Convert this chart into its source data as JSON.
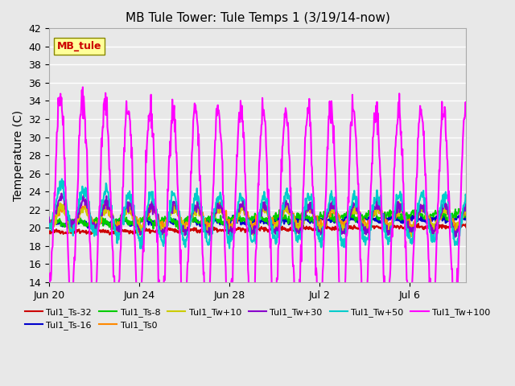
{
  "title": "MB Tule Tower: Tule Temps 1 (3/19/14-now)",
  "ylabel": "Temperature (C)",
  "xlabel": "",
  "xlim_days": [
    0,
    18.5
  ],
  "ylim": [
    14,
    42
  ],
  "yticks": [
    14,
    16,
    18,
    20,
    22,
    24,
    26,
    28,
    30,
    32,
    34,
    36,
    38,
    40,
    42
  ],
  "xtick_labels": [
    "Jun 20",
    "Jun 24",
    "Jun 28",
    "Jul 2",
    "Jul 6"
  ],
  "xtick_positions": [
    0,
    4,
    8,
    12,
    16
  ],
  "background_color": "#e8e8e8",
  "plot_bg_color": "#e8e8e8",
  "grid_color": "#ffffff",
  "series": {
    "Tul1_Ts-32": {
      "color": "#cc0000",
      "lw": 1.5
    },
    "Tul1_Ts-16": {
      "color": "#0000cc",
      "lw": 1.5
    },
    "Tul1_Ts-8": {
      "color": "#00cc00",
      "lw": 1.5
    },
    "Tul1_Ts0": {
      "color": "#ff8800",
      "lw": 1.5
    },
    "Tul1_Tw+10": {
      "color": "#cccc00",
      "lw": 1.5
    },
    "Tul1_Tw+30": {
      "color": "#8800cc",
      "lw": 1.5
    },
    "Tul1_Tw+50": {
      "color": "#00cccc",
      "lw": 1.5
    },
    "Tul1_Tw+100": {
      "color": "#ff00ff",
      "lw": 1.5
    }
  },
  "station_label": "MB_tule",
  "station_label_color": "#cc0000",
  "station_box_color": "#ffff99",
  "station_box_edge": "#888800"
}
